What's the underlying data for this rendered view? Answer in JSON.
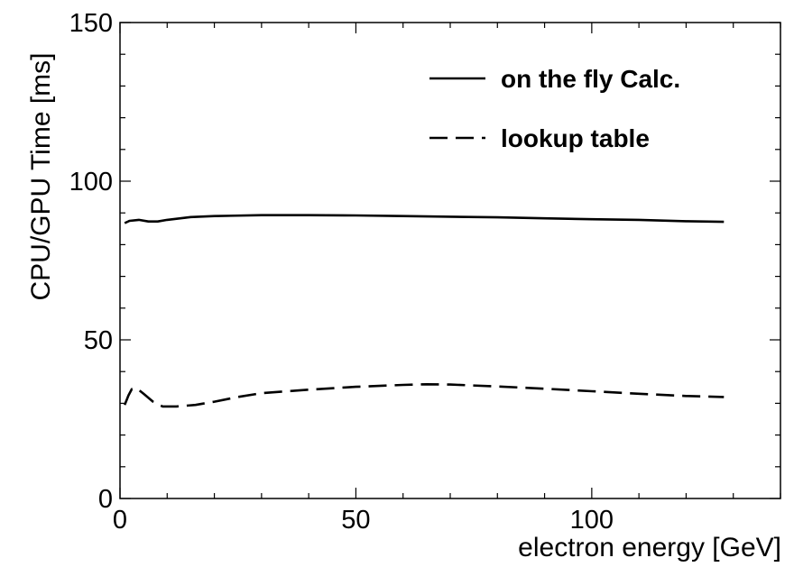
{
  "chart_data": {
    "type": "line",
    "title": "",
    "xlabel": "electron energy [GeV]",
    "ylabel": "CPU/GPU Time [ms]",
    "xlim": [
      0,
      140
    ],
    "ylim": [
      0,
      150
    ],
    "x_ticks": [
      0,
      50,
      100
    ],
    "y_ticks": [
      0,
      50,
      100,
      150
    ],
    "grid": false,
    "legend_position": "top-right",
    "series": [
      {
        "name": "on the fly Calc.",
        "style": "solid",
        "color": "#000000",
        "x": [
          1,
          2,
          4,
          6,
          8,
          10,
          15,
          20,
          30,
          40,
          50,
          60,
          70,
          80,
          90,
          100,
          110,
          120,
          128
        ],
        "y": [
          86.8,
          87.5,
          87.8,
          87.3,
          87.3,
          87.8,
          88.7,
          89.0,
          89.3,
          89.3,
          89.2,
          89.0,
          88.8,
          88.6,
          88.3,
          88.0,
          87.8,
          87.4,
          87.2
        ]
      },
      {
        "name": "lookup table",
        "style": "dashed",
        "color": "#000000",
        "x": [
          1,
          1.8,
          2.5,
          3.5,
          5,
          7,
          9,
          12,
          16,
          20,
          25,
          30,
          40,
          50,
          60,
          65,
          70,
          80,
          90,
          100,
          110,
          120,
          128
        ],
        "y": [
          29.5,
          32.5,
          34.5,
          34.8,
          33.0,
          30.5,
          29.0,
          29.0,
          29.5,
          30.5,
          32.0,
          33.2,
          34.3,
          35.2,
          35.8,
          36.0,
          35.9,
          35.3,
          34.6,
          33.8,
          33.0,
          32.3,
          32.0
        ]
      }
    ]
  }
}
